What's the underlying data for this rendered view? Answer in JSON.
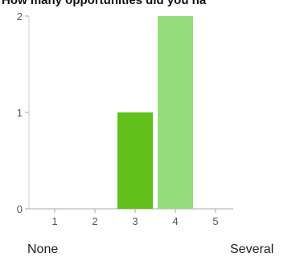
{
  "chart_data": {
    "type": "bar",
    "title": "How many opportunities did you ha",
    "categories": [
      "1",
      "2",
      "3",
      "4",
      "5"
    ],
    "values": [
      0,
      0,
      1,
      2,
      0
    ],
    "bar_colors": [
      "#6ec92a",
      "#6ec92a",
      "#62c01a",
      "#97dc7c",
      "#97dc7c"
    ],
    "ylim": [
      0,
      2
    ],
    "yticks": [
      "0",
      "1",
      "2"
    ],
    "xlabel": "",
    "ylabel": "",
    "scale_labels": {
      "low": "None",
      "high": "Several"
    },
    "grid": false,
    "legend": "none"
  }
}
